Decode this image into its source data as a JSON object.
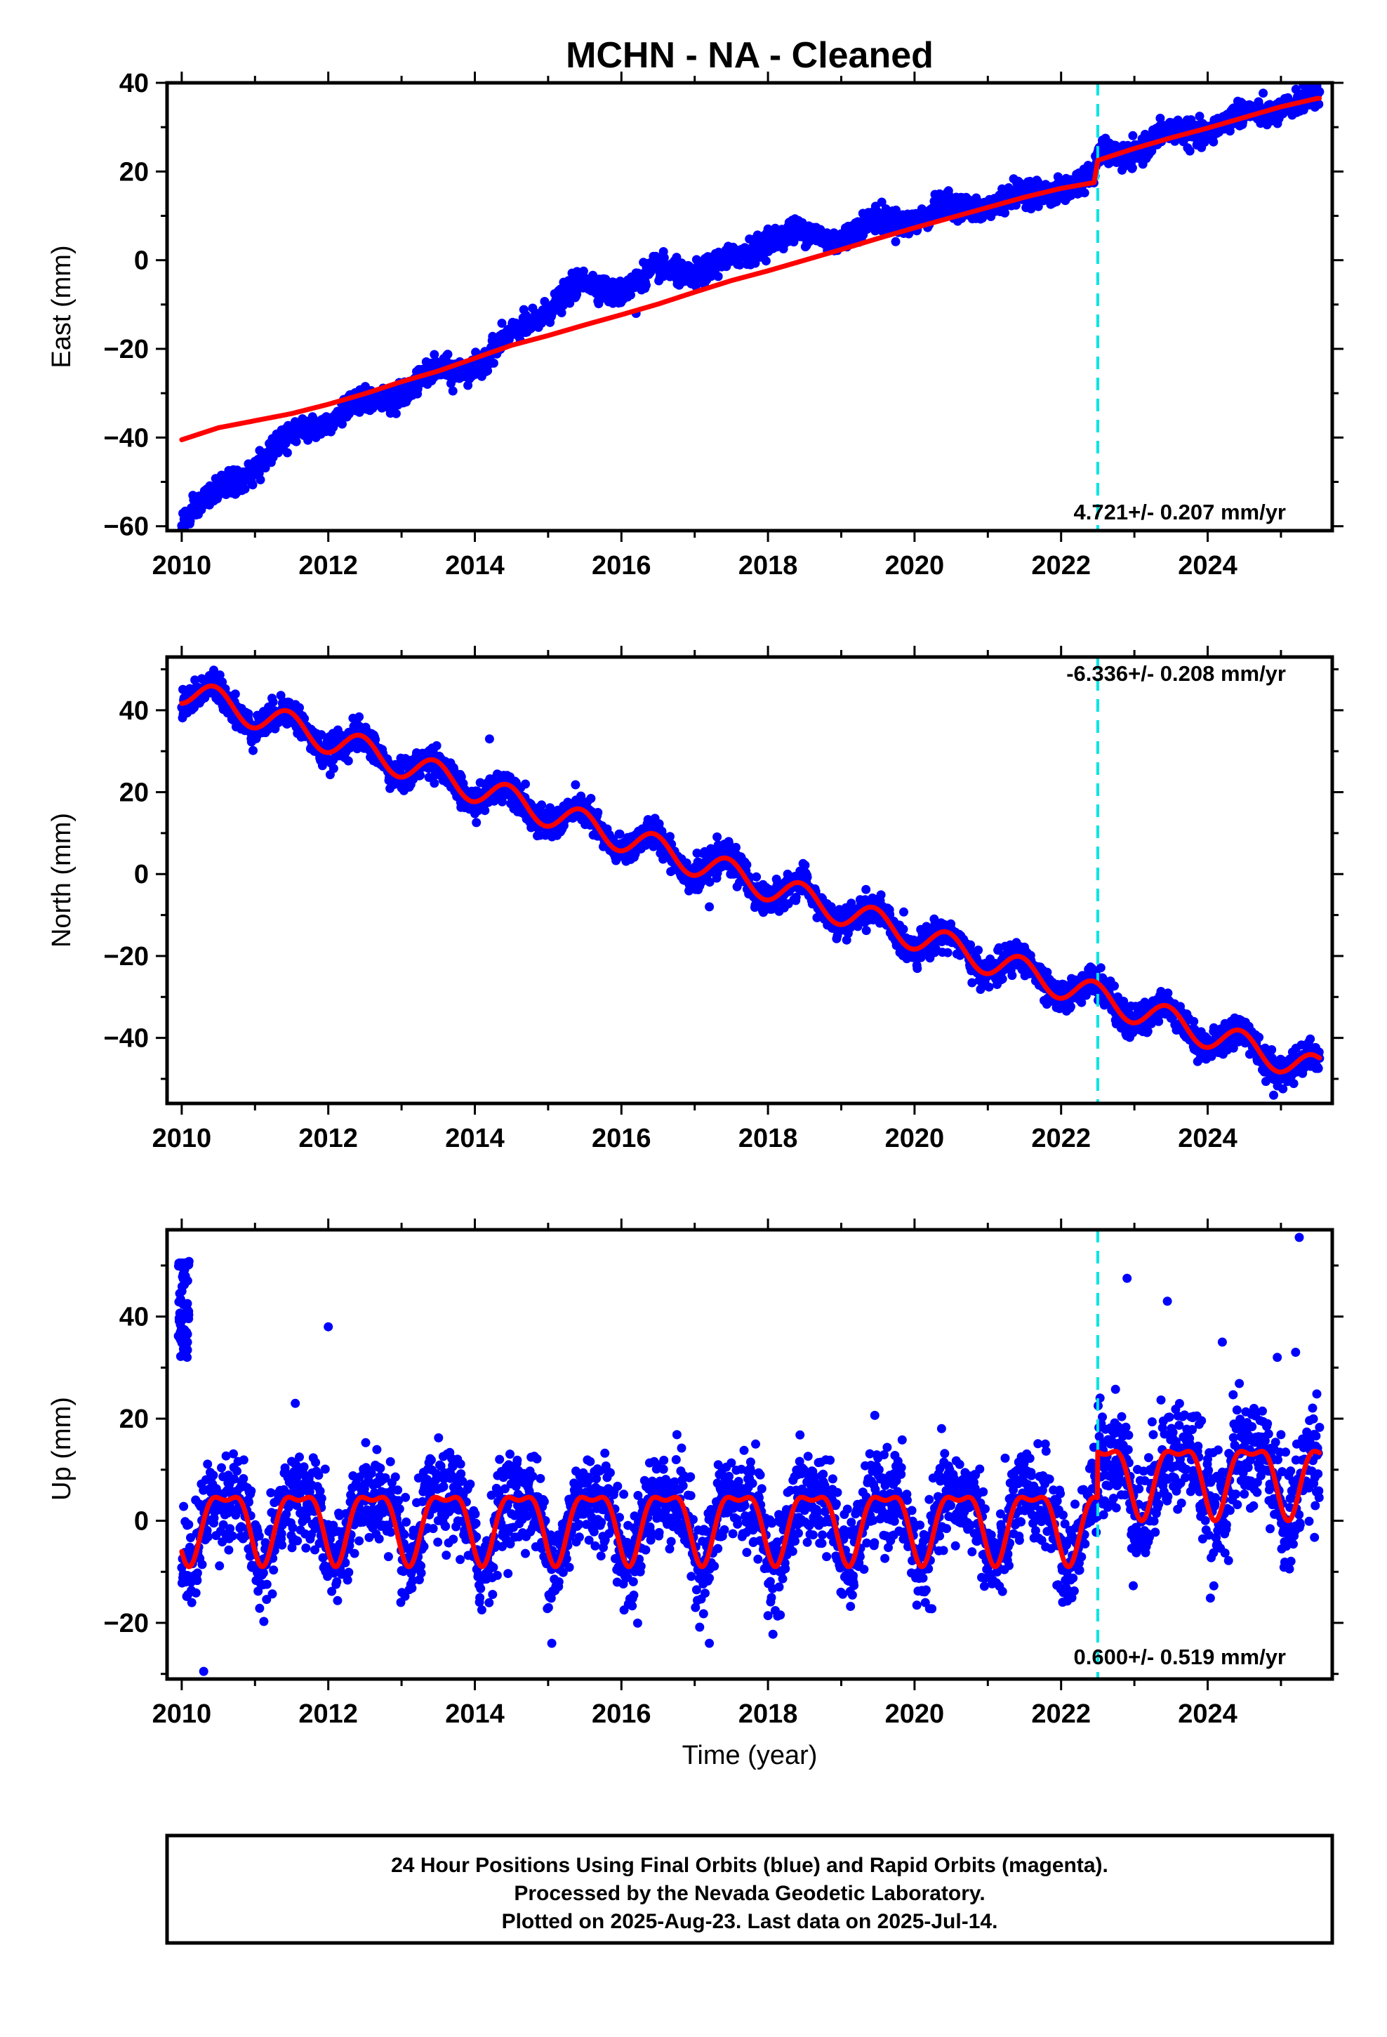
{
  "chart_data": {
    "type": "scatter",
    "title": "MCHN  - NA - Cleaned",
    "x_ticks": [
      "2010",
      "2012",
      "2014",
      "2016",
      "2018",
      "2020",
      "2022",
      "2024"
    ],
    "x_range": [
      2009.8,
      2025.7
    ],
    "xlabel": "Time (year)",
    "vertical_marker_year": 2022.5,
    "colors": {
      "data": "#0000ff",
      "model": "#ff0000",
      "marker": "#00e5e5"
    },
    "panels": [
      {
        "name": "east",
        "ylabel": "East (mm)",
        "ylim": [
          -61,
          40
        ],
        "y_ticks": [
          "40",
          "20",
          "0",
          "−20",
          "−40",
          "−60"
        ],
        "y_tick_values": [
          40,
          20,
          0,
          -20,
          -40,
          -60
        ],
        "rate_label": "4.721+/- 0.207 mm/yr",
        "model": [
          {
            "year": 2010.0,
            "value": -40.5
          },
          {
            "year": 2010.5,
            "value": -37.8
          },
          {
            "year": 2011.0,
            "value": -36.2
          },
          {
            "year": 2011.5,
            "value": -34.6
          },
          {
            "year": 2012.0,
            "value": -32.5
          },
          {
            "year": 2012.5,
            "value": -30.1
          },
          {
            "year": 2013.0,
            "value": -27.4
          },
          {
            "year": 2013.5,
            "value": -25.0
          },
          {
            "year": 2014.0,
            "value": -22.1
          },
          {
            "year": 2014.5,
            "value": -19.2
          },
          {
            "year": 2015.0,
            "value": -17.0
          },
          {
            "year": 2015.5,
            "value": -14.6
          },
          {
            "year": 2016.0,
            "value": -12.3
          },
          {
            "year": 2016.5,
            "value": -9.9
          },
          {
            "year": 2017.0,
            "value": -7.2
          },
          {
            "year": 2017.5,
            "value": -4.6
          },
          {
            "year": 2018.0,
            "value": -2.4
          },
          {
            "year": 2018.5,
            "value": 0.0
          },
          {
            "year": 2019.0,
            "value": 2.4
          },
          {
            "year": 2019.5,
            "value": 4.9
          },
          {
            "year": 2020.0,
            "value": 7.3
          },
          {
            "year": 2020.5,
            "value": 9.6
          },
          {
            "year": 2021.0,
            "value": 11.9
          },
          {
            "year": 2021.5,
            "value": 14.2
          },
          {
            "year": 2022.0,
            "value": 16.2
          },
          {
            "year": 2022.45,
            "value": 17.5
          },
          {
            "year": 2022.5,
            "value": 22.5
          },
          {
            "year": 2023.0,
            "value": 25.2
          },
          {
            "year": 2023.5,
            "value": 27.6
          },
          {
            "year": 2024.0,
            "value": 29.8
          },
          {
            "year": 2024.5,
            "value": 32.2
          },
          {
            "year": 2025.0,
            "value": 34.6
          },
          {
            "year": 2025.5,
            "value": 36.5
          }
        ],
        "data_trend": [
          {
            "year": 2010.0,
            "value": -58.0
          },
          {
            "year": 2010.5,
            "value": -53.0
          },
          {
            "year": 2011.0,
            "value": -46.0
          },
          {
            "year": 2011.5,
            "value": -40.0
          },
          {
            "year": 2012.0,
            "value": -35.0
          },
          {
            "year": 2012.5,
            "value": -33.0
          },
          {
            "year": 2013.0,
            "value": -29.0
          },
          {
            "year": 2013.5,
            "value": -26.0
          },
          {
            "year": 2014.0,
            "value": -23.0
          },
          {
            "year": 2014.5,
            "value": -18.0
          },
          {
            "year": 2015.0,
            "value": -10.0
          },
          {
            "year": 2015.5,
            "value": -6.0
          },
          {
            "year": 2016.0,
            "value": -6.0
          },
          {
            "year": 2016.5,
            "value": -3.0
          },
          {
            "year": 2017.0,
            "value": -2.0
          },
          {
            "year": 2017.5,
            "value": -1.0
          },
          {
            "year": 2018.0,
            "value": 6.0
          },
          {
            "year": 2018.5,
            "value": 5.0
          },
          {
            "year": 2019.0,
            "value": 6.0
          },
          {
            "year": 2019.5,
            "value": 8.0
          },
          {
            "year": 2020.0,
            "value": 10.0
          },
          {
            "year": 2020.5,
            "value": 11.0
          },
          {
            "year": 2021.0,
            "value": 13.0
          },
          {
            "year": 2021.5,
            "value": 14.0
          },
          {
            "year": 2022.0,
            "value": 17.0
          },
          {
            "year": 2022.45,
            "value": 17.5
          },
          {
            "year": 2022.5,
            "value": 23.0
          },
          {
            "year": 2023.0,
            "value": 25.0
          },
          {
            "year": 2023.5,
            "value": 28.0
          },
          {
            "year": 2024.0,
            "value": 30.0
          },
          {
            "year": 2024.5,
            "value": 32.0
          },
          {
            "year": 2025.0,
            "value": 35.0
          },
          {
            "year": 2025.5,
            "value": 36.0
          }
        ],
        "scatter_sd": 1.3,
        "outliers": [
          {
            "year": 2016.2,
            "value": -12.0
          },
          {
            "year": 2013.7,
            "value": -29.5
          }
        ]
      },
      {
        "name": "north",
        "ylabel": "North (mm)",
        "ylim": [
          -56,
          53
        ],
        "y_ticks": [
          "40",
          "20",
          "0",
          "−20",
          "−40"
        ],
        "y_tick_values": [
          40,
          20,
          0,
          -20,
          -40
        ],
        "rate_label": "-6.336+/- 0.208 mm/yr",
        "model_trend": [
          {
            "year": 2010.0,
            "value": 45.0
          },
          {
            "year": 2025.5,
            "value": -48.0
          }
        ],
        "seasonal_amplitude": 3.5,
        "seasonal_peak_phase": 0.45,
        "scatter_sd": 1.8,
        "outliers": [
          {
            "year": 2014.2,
            "value": 33.0
          },
          {
            "year": 2017.2,
            "value": -8.0
          },
          {
            "year": 2024.9,
            "value": -54.0
          }
        ]
      },
      {
        "name": "up",
        "ylabel": "Up (mm)",
        "ylim": [
          -31,
          57
        ],
        "y_ticks": [
          "40",
          "20",
          "0",
          "−20"
        ],
        "y_tick_values": [
          40,
          20,
          0,
          -20
        ],
        "rate_label": "0.600+/- 0.519 mm/yr",
        "model_offset_before": 0.0,
        "model_offset_after": 9.0,
        "seasonal_amplitude": 6.5,
        "scatter_sd": 4.5,
        "early_cluster": {
          "year_start": 2009.95,
          "year_end": 2010.1,
          "min": 32.0,
          "max": 51.0
        },
        "outliers": [
          {
            "year": 2012.0,
            "value": 38.0
          },
          {
            "year": 2011.55,
            "value": 23.0
          },
          {
            "year": 2010.3,
            "value": -29.5
          },
          {
            "year": 2015.05,
            "value": -24.0
          },
          {
            "year": 2017.2,
            "value": -24.0
          },
          {
            "year": 2022.9,
            "value": 47.5
          },
          {
            "year": 2023.45,
            "value": 43.0
          },
          {
            "year": 2024.2,
            "value": 35.0
          },
          {
            "year": 2024.95,
            "value": 32.0
          },
          {
            "year": 2025.2,
            "value": 33.0
          },
          {
            "year": 2025.25,
            "value": 55.5
          }
        ]
      }
    ],
    "footer": [
      "24 Hour Positions Using Final Orbits (blue) and Rapid Orbits (magenta).",
      "Processed by the Nevada Geodetic Laboratory.",
      "Plotted on 2025-Aug-23. Last data on 2025-Jul-14."
    ]
  }
}
